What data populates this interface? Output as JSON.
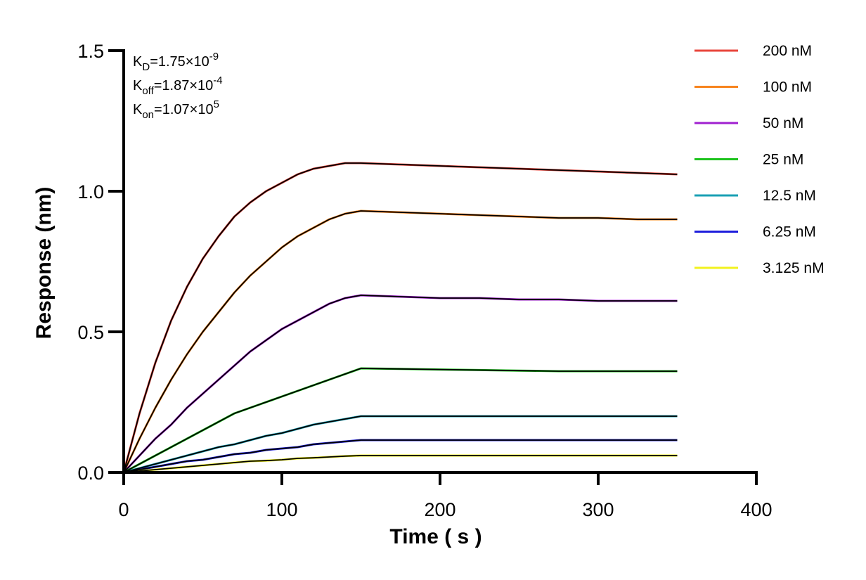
{
  "chart_data": {
    "type": "line",
    "xlabel": "Time ( s )",
    "ylabel": "Response (nm)",
    "xlim": [
      0,
      400
    ],
    "ylim": [
      0,
      1.5
    ],
    "x_ticks": [
      "0",
      "100",
      "200",
      "300",
      "400"
    ],
    "y_ticks": [
      "0.0",
      "0.5",
      "1.0",
      "1.5"
    ],
    "x_tick_values": [
      0,
      100,
      200,
      300,
      400
    ],
    "y_tick_values": [
      0,
      0.5,
      1.0,
      1.5
    ],
    "grid": false,
    "legend_position": "top-right",
    "annotations": [
      {
        "base": "K",
        "sub": "D",
        "mid": "=1.75×10",
        "sup": "-9"
      },
      {
        "base": "K",
        "sub": "off",
        "mid": "=1.87×10",
        "sup": "-4"
      },
      {
        "base": "K",
        "sub": "on",
        "mid": "=1.07×10",
        "sup": "5"
      }
    ],
    "fit_color": "#000000",
    "series": [
      {
        "name": "200 nM",
        "color": "#e8463c",
        "x": [
          0,
          10,
          20,
          30,
          40,
          50,
          60,
          70,
          80,
          90,
          100,
          110,
          120,
          130,
          140,
          150,
          175,
          200,
          225,
          250,
          275,
          300,
          325,
          350
        ],
        "y": [
          0,
          0.21,
          0.39,
          0.54,
          0.66,
          0.76,
          0.84,
          0.91,
          0.96,
          1.0,
          1.03,
          1.06,
          1.08,
          1.09,
          1.1,
          1.1,
          1.095,
          1.09,
          1.085,
          1.08,
          1.075,
          1.07,
          1.065,
          1.06
        ]
      },
      {
        "name": "100 nM",
        "color": "#f7841e",
        "x": [
          0,
          10,
          20,
          30,
          40,
          50,
          60,
          70,
          80,
          90,
          100,
          110,
          120,
          130,
          140,
          150,
          175,
          200,
          225,
          250,
          275,
          300,
          325,
          350
        ],
        "y": [
          0,
          0.12,
          0.23,
          0.33,
          0.42,
          0.5,
          0.57,
          0.64,
          0.7,
          0.75,
          0.8,
          0.84,
          0.87,
          0.9,
          0.92,
          0.93,
          0.925,
          0.92,
          0.915,
          0.91,
          0.905,
          0.905,
          0.9,
          0.9
        ]
      },
      {
        "name": "50 nM",
        "color": "#a020d0",
        "x": [
          0,
          10,
          20,
          30,
          40,
          50,
          60,
          70,
          80,
          90,
          100,
          110,
          120,
          130,
          140,
          150,
          175,
          200,
          225,
          250,
          275,
          300,
          325,
          350
        ],
        "y": [
          0,
          0.06,
          0.12,
          0.17,
          0.23,
          0.28,
          0.33,
          0.38,
          0.43,
          0.47,
          0.51,
          0.54,
          0.57,
          0.6,
          0.62,
          0.63,
          0.625,
          0.62,
          0.62,
          0.615,
          0.615,
          0.61,
          0.61,
          0.61
        ]
      },
      {
        "name": "25 nM",
        "color": "#1ec31e",
        "x": [
          0,
          10,
          20,
          30,
          40,
          50,
          60,
          70,
          80,
          90,
          100,
          110,
          120,
          130,
          140,
          150,
          175,
          200,
          225,
          250,
          275,
          300,
          325,
          350
        ],
        "y": [
          0,
          0.03,
          0.06,
          0.09,
          0.12,
          0.15,
          0.18,
          0.21,
          0.23,
          0.25,
          0.27,
          0.29,
          0.31,
          0.33,
          0.35,
          0.37,
          0.368,
          0.366,
          0.364,
          0.362,
          0.36,
          0.36,
          0.36,
          0.36
        ]
      },
      {
        "name": "12.5 nM",
        "color": "#1aa0b4",
        "x": [
          0,
          10,
          20,
          30,
          40,
          50,
          60,
          70,
          80,
          90,
          100,
          110,
          120,
          130,
          140,
          150,
          175,
          200,
          225,
          250,
          275,
          300,
          325,
          350
        ],
        "y": [
          0,
          0.015,
          0.03,
          0.045,
          0.06,
          0.075,
          0.09,
          0.1,
          0.115,
          0.13,
          0.14,
          0.155,
          0.17,
          0.18,
          0.19,
          0.2,
          0.2,
          0.2,
          0.2,
          0.2,
          0.2,
          0.2,
          0.2,
          0.2
        ]
      },
      {
        "name": "6.25 nM",
        "color": "#1e1edc",
        "x": [
          0,
          10,
          20,
          30,
          40,
          50,
          60,
          70,
          80,
          90,
          100,
          110,
          120,
          130,
          140,
          150,
          175,
          200,
          225,
          250,
          275,
          300,
          325,
          350
        ],
        "y": [
          0,
          0.01,
          0.02,
          0.03,
          0.04,
          0.045,
          0.055,
          0.065,
          0.07,
          0.08,
          0.085,
          0.09,
          0.1,
          0.105,
          0.11,
          0.115,
          0.115,
          0.115,
          0.115,
          0.115,
          0.115,
          0.115,
          0.115,
          0.115
        ]
      },
      {
        "name": "3.125 nM",
        "color": "#f2f21e",
        "x": [
          0,
          10,
          20,
          30,
          40,
          50,
          60,
          70,
          80,
          90,
          100,
          110,
          120,
          130,
          140,
          150,
          175,
          200,
          225,
          250,
          275,
          300,
          325,
          350
        ],
        "y": [
          0,
          0.005,
          0.01,
          0.015,
          0.02,
          0.025,
          0.03,
          0.035,
          0.04,
          0.042,
          0.045,
          0.05,
          0.052,
          0.055,
          0.058,
          0.06,
          0.06,
          0.06,
          0.06,
          0.06,
          0.06,
          0.06,
          0.06,
          0.06
        ]
      }
    ]
  }
}
